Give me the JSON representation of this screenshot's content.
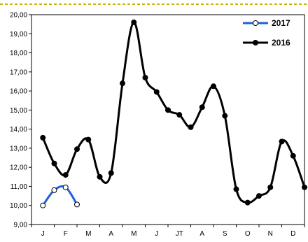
{
  "chart_data": {
    "type": "line",
    "title": "",
    "xlabel": "",
    "ylabel": "",
    "ylim": [
      9.0,
      20.0
    ],
    "y_ticks": [
      "9,00",
      "10,00",
      "11,00",
      "12,00",
      "13,00",
      "14,00",
      "15,00",
      "16,00",
      "17,00",
      "18,00",
      "19,00",
      "20,00"
    ],
    "month_labels": [
      "J",
      "F",
      "M",
      "A",
      "M",
      "J",
      "JT",
      "A",
      "S",
      "O",
      "N",
      "D"
    ],
    "grid": false,
    "legend_placement": "top-right",
    "series": [
      {
        "name": "2017",
        "color": "#1f5fe0",
        "marker": "open-circle",
        "x": [
          0,
          0.5,
          1,
          1.5
        ],
        "values": [
          10.0,
          10.8,
          10.95,
          10.05
        ]
      },
      {
        "name": "2016",
        "color": "#000000",
        "marker": "filled-circle",
        "x": [
          0,
          0.5,
          1,
          1.5,
          2,
          2.5,
          3,
          3.5,
          4,
          4.5,
          5,
          5.5,
          6,
          6.5,
          7,
          7.5,
          8,
          8.5,
          9,
          9.5,
          10,
          10.5,
          11,
          11.5
        ],
        "values": [
          13.55,
          12.2,
          11.6,
          12.95,
          13.45,
          11.5,
          11.7,
          16.4,
          19.6,
          16.7,
          15.95,
          15.0,
          14.75,
          14.1,
          15.15,
          16.25,
          14.7,
          10.85,
          10.15,
          10.5,
          10.95,
          13.35,
          12.6,
          10.95
        ]
      }
    ]
  }
}
